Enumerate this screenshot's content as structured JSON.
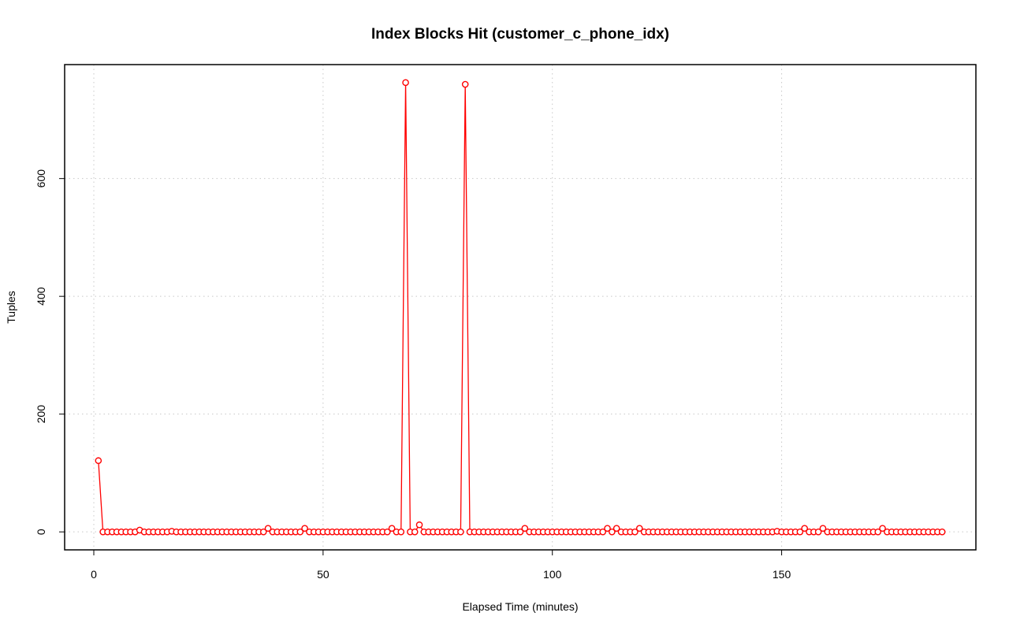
{
  "chart_data": {
    "type": "line",
    "title": "Index Blocks Hit (customer_c_phone_idx)",
    "x_label": "Elapsed Time (minutes)",
    "y_label": "Tuples",
    "xlim": [
      -6.36,
      192.36
    ],
    "ylim": [
      -30.52,
      793.52
    ],
    "xticks": [
      0,
      50,
      100,
      150
    ],
    "yticks": [
      0,
      200,
      400,
      600
    ],
    "grid": true,
    "x": [
      1,
      2,
      3,
      4,
      5,
      6,
      7,
      8,
      9,
      10,
      11,
      12,
      13,
      14,
      15,
      16,
      17,
      18,
      19,
      20,
      21,
      22,
      23,
      24,
      25,
      26,
      27,
      28,
      29,
      30,
      31,
      32,
      33,
      34,
      35,
      36,
      37,
      38,
      39,
      40,
      41,
      42,
      43,
      44,
      45,
      46,
      47,
      48,
      49,
      50,
      51,
      52,
      53,
      54,
      55,
      56,
      57,
      58,
      59,
      60,
      61,
      62,
      63,
      64,
      65,
      66,
      67,
      68,
      69,
      70,
      71,
      72,
      73,
      74,
      75,
      76,
      77,
      78,
      79,
      80,
      81,
      82,
      83,
      84,
      85,
      86,
      87,
      88,
      89,
      90,
      91,
      92,
      93,
      94,
      95,
      96,
      97,
      98,
      99,
      100,
      101,
      102,
      103,
      104,
      105,
      106,
      107,
      108,
      109,
      110,
      111,
      112,
      113,
      114,
      115,
      116,
      117,
      118,
      119,
      120,
      121,
      122,
      123,
      124,
      125,
      126,
      127,
      128,
      129,
      130,
      131,
      132,
      133,
      134,
      135,
      136,
      137,
      138,
      139,
      140,
      141,
      142,
      143,
      144,
      145,
      146,
      147,
      148,
      149,
      150,
      151,
      152,
      153,
      154,
      155,
      156,
      157,
      158,
      159,
      160,
      161,
      162,
      163,
      164,
      165,
      166,
      167,
      168,
      169,
      170,
      171,
      172,
      173,
      174,
      175,
      176,
      177,
      178,
      179,
      180,
      181,
      182,
      183,
      184,
      185
    ],
    "series": [
      {
        "color": "#ff0000",
        "values": [
          121,
          0,
          0,
          0,
          0,
          0,
          0,
          0,
          0,
          3,
          0,
          0,
          0,
          0,
          0,
          0,
          1,
          0,
          0,
          0,
          0,
          0,
          0,
          0,
          0,
          0,
          0,
          0,
          0,
          0,
          0,
          0,
          0,
          0,
          0,
          0,
          0,
          6,
          0,
          0,
          0,
          0,
          0,
          0,
          0,
          6,
          0,
          0,
          0,
          0,
          0,
          0,
          0,
          0,
          0,
          0,
          0,
          0,
          0,
          0,
          0,
          0,
          0,
          0,
          6,
          0,
          0,
          763,
          0,
          0,
          12,
          0,
          0,
          0,
          0,
          0,
          0,
          0,
          0,
          0,
          760,
          0,
          0,
          0,
          0,
          0,
          0,
          0,
          0,
          0,
          0,
          0,
          0,
          6,
          0,
          0,
          0,
          0,
          0,
          0,
          0,
          0,
          0,
          0,
          0,
          0,
          0,
          0,
          0,
          0,
          0,
          6,
          0,
          6,
          0,
          0,
          0,
          0,
          6,
          0,
          0,
          0,
          0,
          0,
          0,
          0,
          0,
          0,
          0,
          0,
          0,
          0,
          0,
          0,
          0,
          0,
          0,
          0,
          0,
          0,
          0,
          0,
          0,
          0,
          0,
          0,
          0,
          0,
          1,
          0,
          0,
          0,
          0,
          0,
          6,
          0,
          0,
          0,
          6,
          0,
          0,
          0,
          0,
          0,
          0,
          0,
          0,
          0,
          0,
          0,
          0,
          6,
          0,
          0,
          0,
          0,
          0,
          0,
          0,
          0,
          0,
          0,
          0,
          0,
          0
        ]
      }
    ]
  }
}
